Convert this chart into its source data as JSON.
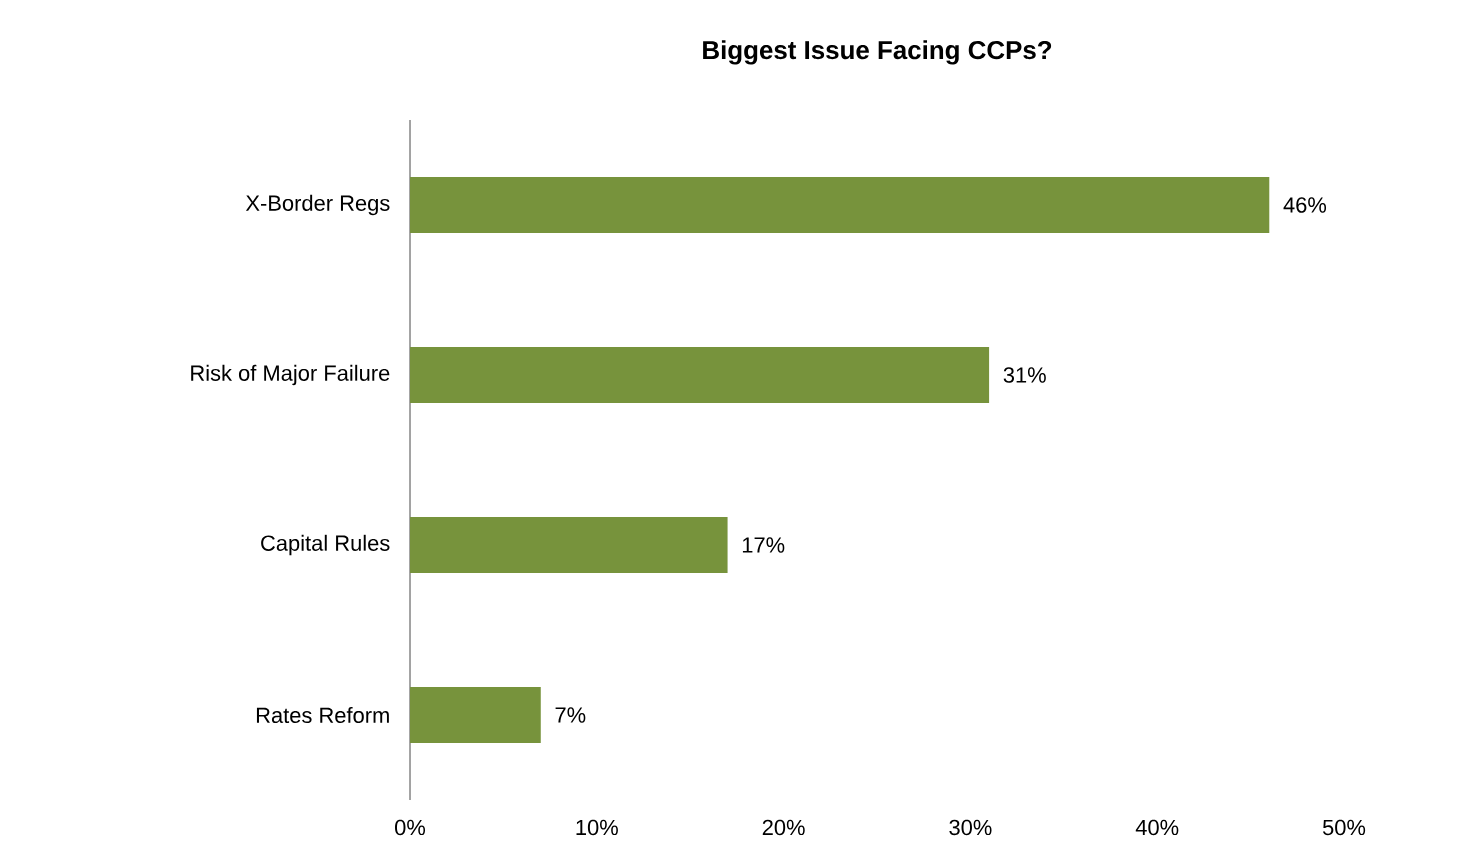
{
  "chart_data": {
    "type": "bar",
    "orientation": "horizontal",
    "title": "Biggest Issue Facing CCPs?",
    "categories": [
      "X-Border Regs",
      "Risk of Major Failure",
      "Capital Rules",
      "Rates Reform"
    ],
    "values": [
      46,
      31,
      17,
      7
    ],
    "value_labels": [
      "46%",
      "31%",
      "17%",
      "7%"
    ],
    "color": "#77933c",
    "xlim": [
      0,
      50
    ],
    "xticks": [
      {
        "value": 0,
        "label": "0%"
      },
      {
        "value": 10,
        "label": "10%"
      },
      {
        "value": 20,
        "label": "20%"
      },
      {
        "value": 30,
        "label": "30%"
      },
      {
        "value": 40,
        "label": "40%"
      },
      {
        "value": 50,
        "label": "50%"
      }
    ]
  }
}
